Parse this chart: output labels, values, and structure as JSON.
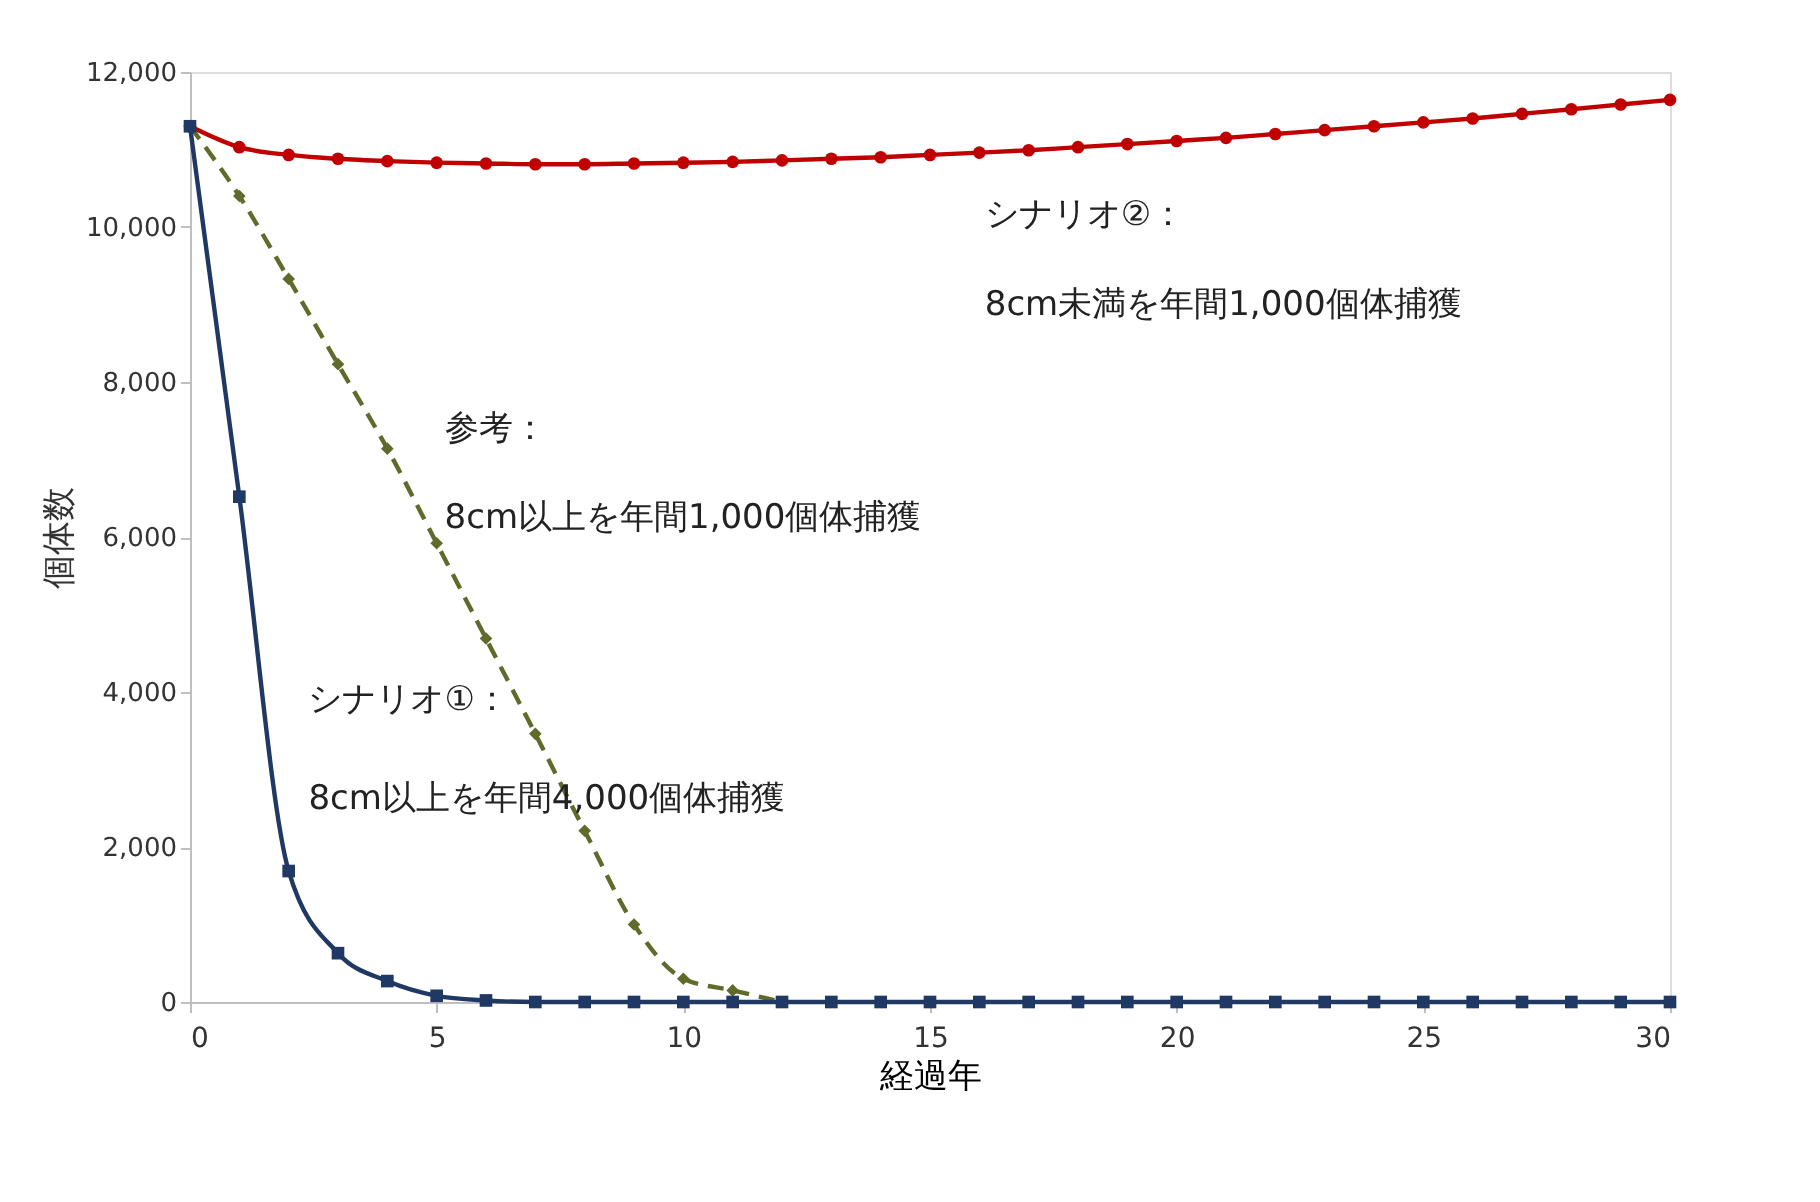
{
  "chart_data": {
    "type": "line",
    "xlabel": "経過年",
    "ylabel": "個体数",
    "x": [
      0,
      1,
      2,
      3,
      4,
      5,
      6,
      7,
      8,
      9,
      10,
      11,
      12,
      13,
      14,
      15,
      16,
      17,
      18,
      19,
      20,
      21,
      22,
      23,
      24,
      25,
      26,
      27,
      28,
      29,
      30
    ],
    "series": [
      {
        "color": "#c00000",
        "marker": "circle",
        "line_style": "solid",
        "values": [
          11300,
          11030,
          10930,
          10880,
          10850,
          10830,
          10820,
          10810,
          10810,
          10820,
          10830,
          10840,
          10860,
          10880,
          10900,
          10930,
          10960,
          10990,
          11030,
          11070,
          11110,
          11150,
          11200,
          11250,
          11300,
          11350,
          11400,
          11460,
          11520,
          11580,
          11640
        ]
      },
      {
        "color": "#5f6b2a",
        "marker": "diamond",
        "line_style": "dashed",
        "x": [
          0,
          1,
          2,
          3,
          4,
          5,
          6,
          7,
          8,
          9,
          10,
          11,
          12
        ],
        "values": [
          11300,
          10400,
          9330,
          8230,
          7140,
          5920,
          4690,
          3460,
          2210,
          1000,
          300,
          150,
          0
        ]
      },
      {
        "color": "#1f3864",
        "marker": "square",
        "line_style": "solid",
        "values": [
          11300,
          6520,
          1690,
          630,
          270,
          80,
          20,
          0,
          0,
          0,
          0,
          0,
          0,
          0,
          0,
          0,
          0,
          0,
          0,
          0,
          0,
          0,
          0,
          0,
          0,
          0,
          0,
          0,
          0,
          0,
          0
        ]
      }
    ],
    "xlim": [
      0,
      30
    ],
    "xticks": [
      0,
      5,
      10,
      15,
      20,
      25,
      30
    ],
    "ylim": [
      0,
      12000
    ],
    "yticks": [
      0,
      {
        "value": 2000,
        "label": "2,000"
      },
      {
        "value": 4000,
        "label": "4,000"
      },
      {
        "value": 6000,
        "label": "6,000"
      },
      {
        "value": 8000,
        "label": "8,000"
      },
      {
        "value": 10000,
        "label": "10,000"
      },
      {
        "value": 12000,
        "label": "12,000"
      }
    ],
    "grid": false,
    "annotations": [
      "シナリオ②：",
      "8cm未満を年間1,000個体捕獲",
      "参考：",
      "8cm以上を年間1,000個体捕獲",
      "シナリオ①：",
      "8cm以上を年間4,000個体捕獲"
    ]
  }
}
